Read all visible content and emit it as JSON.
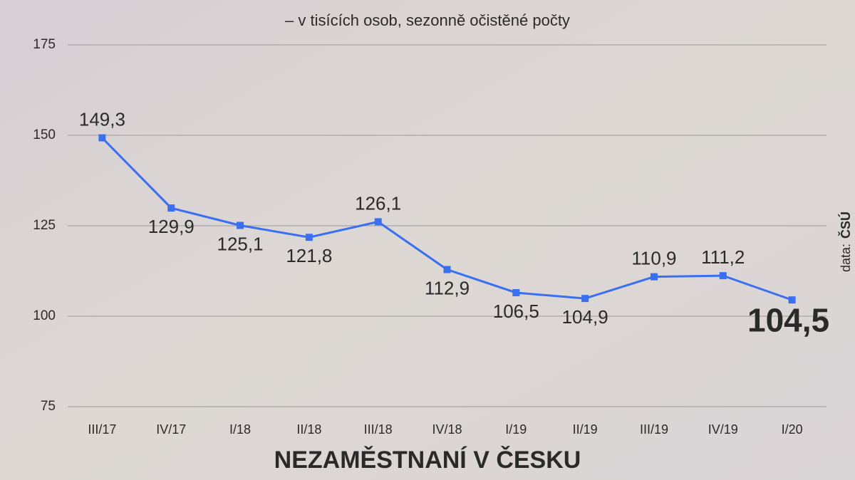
{
  "chart_data": {
    "type": "line",
    "title": "NEZAMĚSTNANÍ V ČESKU",
    "subtitle": "– v tisících osob, sezonně očistěné počty",
    "source_label": "data:",
    "source": "ČSÚ",
    "categories": [
      "III/17",
      "IV/17",
      "I/18",
      "II/18",
      "III/18",
      "IV/18",
      "I/19",
      "II/19",
      "III/19",
      "IV/19",
      "I/20"
    ],
    "values": [
      149.3,
      129.9,
      125.1,
      121.8,
      126.1,
      112.9,
      106.5,
      104.9,
      110.9,
      111.2,
      104.5
    ],
    "value_labels": [
      "149,3",
      "129,9",
      "125,1",
      "121,8",
      "126,1",
      "112,9",
      "106,5",
      "104,9",
      "110,9",
      "111,2",
      "104,5"
    ],
    "color": "#3a6ff2",
    "ylim": [
      75,
      175
    ],
    "yticks": [
      75,
      100,
      125,
      150,
      175
    ],
    "grid": true
  }
}
